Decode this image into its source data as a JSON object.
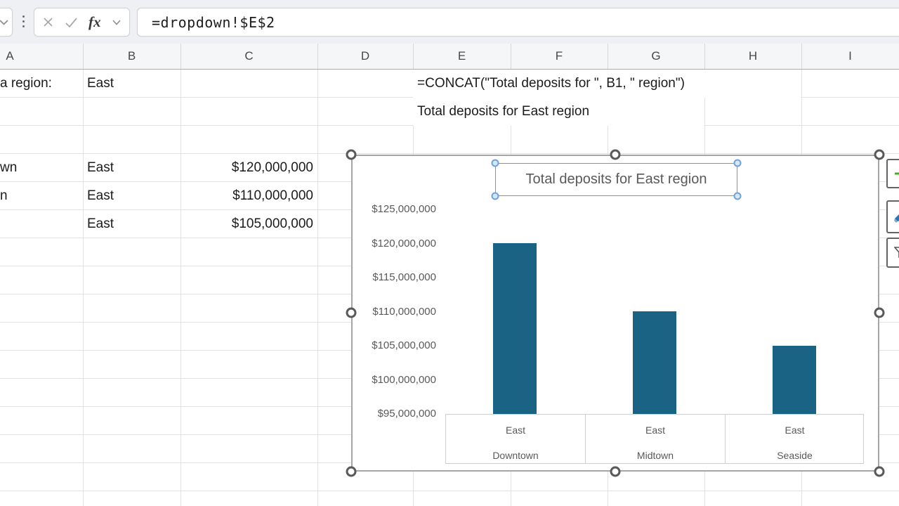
{
  "formula_bar": {
    "formula": "=dropdown!$E$2",
    "fx_label": "fx",
    "icons": {
      "name_box_chevron": "chevron-down",
      "drag_handle": "vertical-dots",
      "cancel": "x-mark",
      "enter": "check-mark",
      "formula_chevron": "chevron-down"
    }
  },
  "sheet": {
    "column_headers": [
      "A",
      "B",
      "C",
      "D",
      "E",
      "F",
      "G",
      "H",
      "I"
    ],
    "cells": [
      {
        "ref": "A1",
        "col": "A",
        "row": 1,
        "text": "a region:",
        "align": "left",
        "clipped": true
      },
      {
        "ref": "B1",
        "col": "B",
        "row": 1,
        "text": "East",
        "align": "left"
      },
      {
        "ref": "E1",
        "col": "E",
        "row": 1,
        "text": "=CONCAT(\"Total deposits for \", B1, \" region\")",
        "align": "left",
        "spill_to": "I"
      },
      {
        "ref": "E2",
        "col": "E",
        "row": 2,
        "text": "Total deposits for East region",
        "align": "left",
        "spill_to": "H"
      },
      {
        "ref": "A4",
        "col": "A",
        "row": 4,
        "text": "wn",
        "align": "left",
        "clipped": true
      },
      {
        "ref": "B4",
        "col": "B",
        "row": 4,
        "text": "East",
        "align": "left"
      },
      {
        "ref": "C4",
        "col": "C",
        "row": 4,
        "text": "$120,000,000",
        "align": "right"
      },
      {
        "ref": "A5",
        "col": "A",
        "row": 5,
        "text": "n",
        "align": "left",
        "clipped": true
      },
      {
        "ref": "B5",
        "col": "B",
        "row": 5,
        "text": "East",
        "align": "left"
      },
      {
        "ref": "C5",
        "col": "C",
        "row": 5,
        "text": "$110,000,000",
        "align": "right"
      },
      {
        "ref": "B6",
        "col": "B",
        "row": 6,
        "text": "East",
        "align": "left"
      },
      {
        "ref": "C6",
        "col": "C",
        "row": 6,
        "text": "$105,000,000",
        "align": "right"
      }
    ]
  },
  "chart": {
    "selected": true,
    "title_selected": true,
    "side_buttons": [
      {
        "icon": "plus-icon",
        "color": "#4ea72e"
      },
      {
        "icon": "brush-icon",
        "color": "#2e74b5"
      },
      {
        "icon": "funnel-icon",
        "color": "#555555"
      }
    ]
  },
  "chart_data": {
    "type": "bar",
    "title": "Total deposits for East region",
    "categories": [
      [
        "East",
        "Downtown"
      ],
      [
        "East",
        "Midtown"
      ],
      [
        "East",
        "Seaside"
      ]
    ],
    "values": [
      120000000,
      110000000,
      105000000
    ],
    "value_labels": [
      "$120,000,000",
      "$110,000,000",
      "$105,000,000"
    ],
    "ylim": [
      95000000,
      125000000
    ],
    "ytick_step": 5000000,
    "ytick_labels": [
      "$95,000,000",
      "$100,000,000",
      "$105,000,000",
      "$110,000,000",
      "$115,000,000",
      "$120,000,000",
      "$125,000,000"
    ],
    "grid": false,
    "legend": false,
    "bar_color": "#1b6385"
  }
}
